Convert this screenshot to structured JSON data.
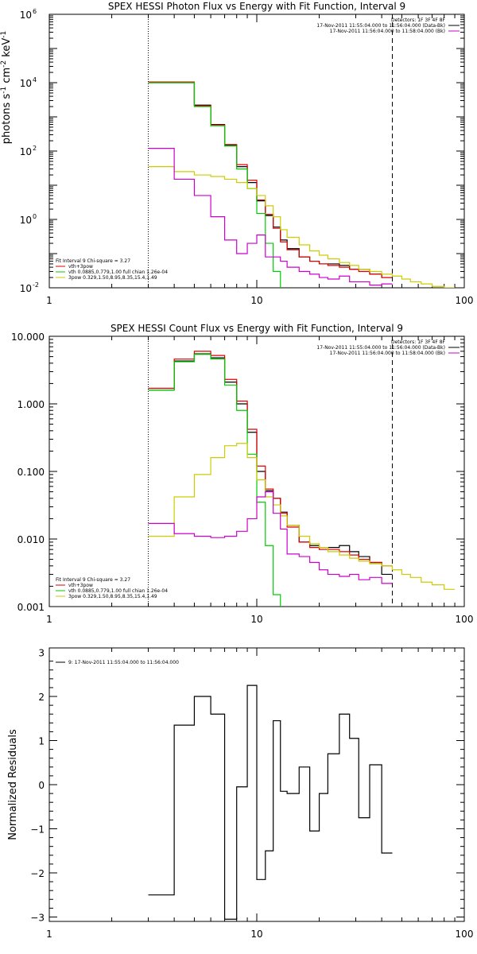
{
  "chart_data": [
    {
      "type": "line",
      "title": "SPEX HESSI Photon Flux vs Energy with Fit Function, Interval 9",
      "ylabel_parts": [
        "photons s",
        "-1",
        " cm",
        "-2",
        " keV",
        "-1"
      ],
      "x_scale": "log",
      "y_scale": "log",
      "xlim": [
        1,
        100
      ],
      "ylim": [
        0.01,
        1000000
      ],
      "x_ticks": [
        {
          "value": 1,
          "label": "1"
        },
        {
          "value": 10,
          "label": "10"
        },
        {
          "value": 100,
          "label": "100"
        }
      ],
      "y_ticks": [
        {
          "value": 0.01,
          "base": "10",
          "exp": "-2"
        },
        {
          "value": 1,
          "base": "10",
          "exp": "0"
        },
        {
          "value": 100,
          "base": "10",
          "exp": "2"
        },
        {
          "value": 10000,
          "base": "10",
          "exp": "4"
        },
        {
          "value": 1000000,
          "base": "10",
          "exp": "6"
        }
      ],
      "vlines": [
        {
          "x": 3.0,
          "style": "dotted"
        },
        {
          "x": 45,
          "style": "dashed"
        }
      ],
      "header_lines": [
        {
          "text": "Detectors: 1F 3F 4F 8F",
          "color": ""
        },
        {
          "text": "17-Nov-2011 11:55:04.000 to 11:56:04.000 (Data-Bk)",
          "color": "#000000"
        },
        {
          "text": "17-Nov-2011 11:56:04.000 to 11:58:04.000 (Bk)",
          "color": "#cc00cc"
        }
      ],
      "legend_lines": [
        {
          "text": "Fit Interval 9   Chi-square = 3.27",
          "color": ""
        },
        {
          "text": "vth+3pow",
          "color": "#dd0000"
        },
        {
          "text": "vth 0.0885,0.779,1.00  full chian 1.26e-04",
          "color": "#00cc00"
        },
        {
          "text": "3pow 0.329,1.50,8.95,8.35,15.4,1.49",
          "color": "#cccc00"
        }
      ],
      "series": [
        {
          "color": "#000000",
          "edges": [
            3.0,
            4.0,
            5.0,
            6.0,
            7.0,
            8.0,
            9.0,
            10.0,
            11.0,
            12.0,
            13.0,
            14.0,
            16.0,
            18.0,
            20.0,
            22.0,
            25.0,
            28.0,
            31.0,
            35.0,
            40.0,
            45.0
          ],
          "values": [
            10000,
            10000,
            2200,
            600,
            150,
            35,
            12,
            3.5,
            1.3,
            0.6,
            0.25,
            0.14,
            0.08,
            0.06,
            0.05,
            0.05,
            0.045,
            0.035,
            0.035,
            0.025,
            0.02
          ]
        },
        {
          "color": "#dd0000",
          "edges": [
            3.0,
            4.0,
            5.0,
            6.0,
            7.0,
            8.0,
            9.0,
            10.0,
            11.0,
            12.0,
            13.0,
            14.0,
            16.0,
            18.0,
            20.0,
            22.0,
            25.0,
            28.0,
            31.0,
            35.0,
            40.0,
            45.0
          ],
          "values": [
            10500,
            10500,
            2100,
            580,
            155,
            40,
            14,
            3.7,
            1.4,
            0.55,
            0.22,
            0.13,
            0.08,
            0.06,
            0.05,
            0.045,
            0.04,
            0.035,
            0.03,
            0.025,
            0.02
          ]
        },
        {
          "color": "#00cc00",
          "edges": [
            3.0,
            4.0,
            5.0,
            6.0,
            7.0,
            8.0,
            9.0,
            10.0,
            11.0,
            12.0,
            13.0
          ],
          "values": [
            10000,
            10000,
            2000,
            550,
            140,
            30,
            8,
            1.5,
            0.2,
            0.03,
            0.01
          ]
        },
        {
          "color": "#cccc00",
          "edges": [
            3.0,
            4.0,
            5.0,
            6.0,
            7.0,
            8.0,
            9.0,
            10.0,
            11.0,
            12.0,
            13.0,
            14.0,
            16.0,
            18.0,
            20.0,
            22.0,
            25.0,
            28.0,
            31.0,
            35.0,
            40.0,
            45.0,
            50.0,
            55.0,
            62.0,
            70.0,
            80.0,
            90.0
          ],
          "values": [
            35,
            25,
            20,
            18,
            15,
            12,
            8,
            5,
            2.5,
            1.2,
            0.5,
            0.3,
            0.18,
            0.12,
            0.09,
            0.07,
            0.055,
            0.045,
            0.035,
            0.03,
            0.025,
            0.022,
            0.018,
            0.015,
            0.013,
            0.011,
            0.01
          ]
        },
        {
          "color": "#cc00cc",
          "edges": [
            3.0,
            4.0,
            5.0,
            6.0,
            7.0,
            8.0,
            9.0,
            10.0,
            11.0,
            12.0,
            13.0,
            14.0,
            16.0,
            18.0,
            20.0,
            22.0,
            25.0,
            28.0,
            31.0,
            35.0,
            40.0,
            45.0
          ],
          "values": [
            120,
            15,
            5,
            1.2,
            0.25,
            0.1,
            0.2,
            0.35,
            0.08,
            0.08,
            0.06,
            0.04,
            0.03,
            0.025,
            0.02,
            0.018,
            0.022,
            0.015,
            0.015,
            0.012,
            0.013
          ]
        }
      ]
    },
    {
      "type": "line",
      "title": "SPEX HESSI Count Flux vs Energy with Fit Function, Interval 9",
      "x_scale": "log",
      "y_scale": "log",
      "xlim": [
        1,
        100
      ],
      "ylim": [
        0.001,
        10
      ],
      "x_ticks": [
        {
          "value": 1,
          "label": "1"
        },
        {
          "value": 10,
          "label": "10"
        },
        {
          "value": 100,
          "label": "100"
        }
      ],
      "y_ticks": [
        {
          "value": 0.001,
          "label": "0.001"
        },
        {
          "value": 0.01,
          "label": "0.010"
        },
        {
          "value": 0.1,
          "label": "0.100"
        },
        {
          "value": 1,
          "label": "1.000"
        },
        {
          "value": 10,
          "label": "10.000"
        }
      ],
      "vlines": [
        {
          "x": 3.0,
          "style": "dotted"
        },
        {
          "x": 45,
          "style": "dashed"
        }
      ],
      "header_lines": [
        {
          "text": "Detectors: 1F 3F 4F 8F",
          "color": ""
        },
        {
          "text": "17-Nov-2011 11:55:04.000 to 11:56:04.000 (Data-Bk)",
          "color": "#000000"
        },
        {
          "text": "17-Nov-2011 11:56:04.000 to 11:58:04.000 (Bk)",
          "color": "#cc00cc"
        }
      ],
      "legend_lines": [
        {
          "text": "Fit Interval 9   Chi-square = 3.27",
          "color": ""
        },
        {
          "text": "vth+3pow",
          "color": "#dd0000"
        },
        {
          "text": "vth 0.0885,0.779,1.00  full chian 1.26e-04",
          "color": "#00cc00"
        },
        {
          "text": "3pow 0.329,1.50,8.95,8.35,15.4,1.49",
          "color": "#cccc00"
        }
      ],
      "series": [
        {
          "color": "#000000",
          "edges": [
            3.0,
            4.0,
            5.0,
            6.0,
            7.0,
            8.0,
            9.0,
            10.0,
            11.0,
            12.0,
            13.0,
            14.0,
            16.0,
            18.0,
            20.0,
            22.0,
            25.0,
            28.0,
            31.0,
            35.0,
            40.0,
            45.0
          ],
          "values": [
            1.6,
            4.3,
            5.5,
            4.8,
            2.1,
            1.0,
            0.38,
            0.1,
            0.052,
            0.04,
            0.025,
            0.016,
            0.009,
            0.008,
            0.0075,
            0.0075,
            0.008,
            0.0065,
            0.0055,
            0.0045,
            0.003
          ]
        },
        {
          "color": "#dd0000",
          "edges": [
            3.0,
            4.0,
            5.0,
            6.0,
            7.0,
            8.0,
            9.0,
            10.0,
            11.0,
            12.0,
            13.0,
            14.0,
            16.0,
            18.0,
            20.0,
            22.0,
            25.0,
            28.0,
            31.0,
            35.0,
            40.0,
            45.0
          ],
          "values": [
            1.7,
            4.6,
            6.0,
            5.2,
            2.3,
            1.1,
            0.42,
            0.12,
            0.055,
            0.04,
            0.024,
            0.015,
            0.009,
            0.0075,
            0.007,
            0.007,
            0.0065,
            0.0058,
            0.005,
            0.0045,
            0.004
          ]
        },
        {
          "color": "#00cc00",
          "edges": [
            3.0,
            4.0,
            5.0,
            6.0,
            7.0,
            8.0,
            9.0,
            10.0,
            11.0,
            12.0,
            13.0
          ],
          "values": [
            1.6,
            4.2,
            5.4,
            4.6,
            1.9,
            0.8,
            0.18,
            0.035,
            0.008,
            0.0015,
            0.0008
          ]
        },
        {
          "color": "#cccc00",
          "edges": [
            3.0,
            4.0,
            5.0,
            6.0,
            7.0,
            8.0,
            9.0,
            10.0,
            11.0,
            12.0,
            13.0,
            14.0,
            16.0,
            18.0,
            20.0,
            22.0,
            25.0,
            28.0,
            31.0,
            35.0,
            40.0,
            45.0,
            50.0,
            55.0,
            62.0,
            70.0,
            80.0,
            90.0
          ],
          "values": [
            0.011,
            0.042,
            0.09,
            0.16,
            0.24,
            0.26,
            0.16,
            0.075,
            0.042,
            0.032,
            0.022,
            0.016,
            0.011,
            0.0085,
            0.0075,
            0.0065,
            0.0058,
            0.0052,
            0.0047,
            0.0043,
            0.004,
            0.0035,
            0.003,
            0.0027,
            0.0023,
            0.0021,
            0.0018
          ]
        },
        {
          "color": "#cc00cc",
          "edges": [
            3.0,
            4.0,
            5.0,
            6.0,
            7.0,
            8.0,
            9.0,
            10.0,
            11.0,
            12.0,
            13.0,
            14.0,
            16.0,
            18.0,
            20.0,
            22.0,
            25.0,
            28.0,
            31.0,
            35.0,
            40.0,
            45.0
          ],
          "values": [
            0.017,
            0.012,
            0.011,
            0.0105,
            0.011,
            0.013,
            0.02,
            0.042,
            0.05,
            0.024,
            0.014,
            0.006,
            0.0055,
            0.0045,
            0.0035,
            0.003,
            0.0028,
            0.003,
            0.0025,
            0.0027,
            0.0022
          ]
        }
      ]
    },
    {
      "type": "line",
      "title": "",
      "ylabel": "Normalized Residuals",
      "x_scale": "log",
      "y_scale": "linear",
      "xlim": [
        1,
        100
      ],
      "ylim": [
        -3.1,
        3.1
      ],
      "x_ticks": [
        {
          "value": 1,
          "label": "1"
        },
        {
          "value": 10,
          "label": "10"
        },
        {
          "value": 100,
          "label": "100"
        }
      ],
      "y_ticks": [
        {
          "value": -3,
          "label": "−3"
        },
        {
          "value": -2,
          "label": "−2"
        },
        {
          "value": -1,
          "label": "−1"
        },
        {
          "value": 0,
          "label": "0"
        },
        {
          "value": 1,
          "label": "1"
        },
        {
          "value": 2,
          "label": "2"
        },
        {
          "value": 3,
          "label": "3"
        }
      ],
      "vlines": [],
      "header_lines": [],
      "legend_lines": [
        {
          "text": "9: 17-Nov-2011 11:55:04.000 to 11:56:04.000",
          "color": "#000000"
        }
      ],
      "series": [
        {
          "color": "#000000",
          "edges": [
            3.0,
            4.0,
            5.0,
            6.0,
            7.0,
            8.0,
            9.0,
            10.0,
            11.0,
            12.0,
            13.0,
            14.0,
            16.0,
            18.0,
            20.0,
            22.0,
            25.0,
            28.0,
            31.0,
            35.0,
            40.0,
            45.0
          ],
          "values": [
            -2.5,
            1.35,
            2.0,
            1.6,
            -3.05,
            -0.05,
            2.25,
            -2.15,
            -1.5,
            1.45,
            -0.15,
            -0.2,
            0.4,
            -1.05,
            -0.2,
            0.7,
            1.6,
            1.05,
            -0.75,
            0.45,
            -1.55
          ]
        }
      ]
    }
  ]
}
